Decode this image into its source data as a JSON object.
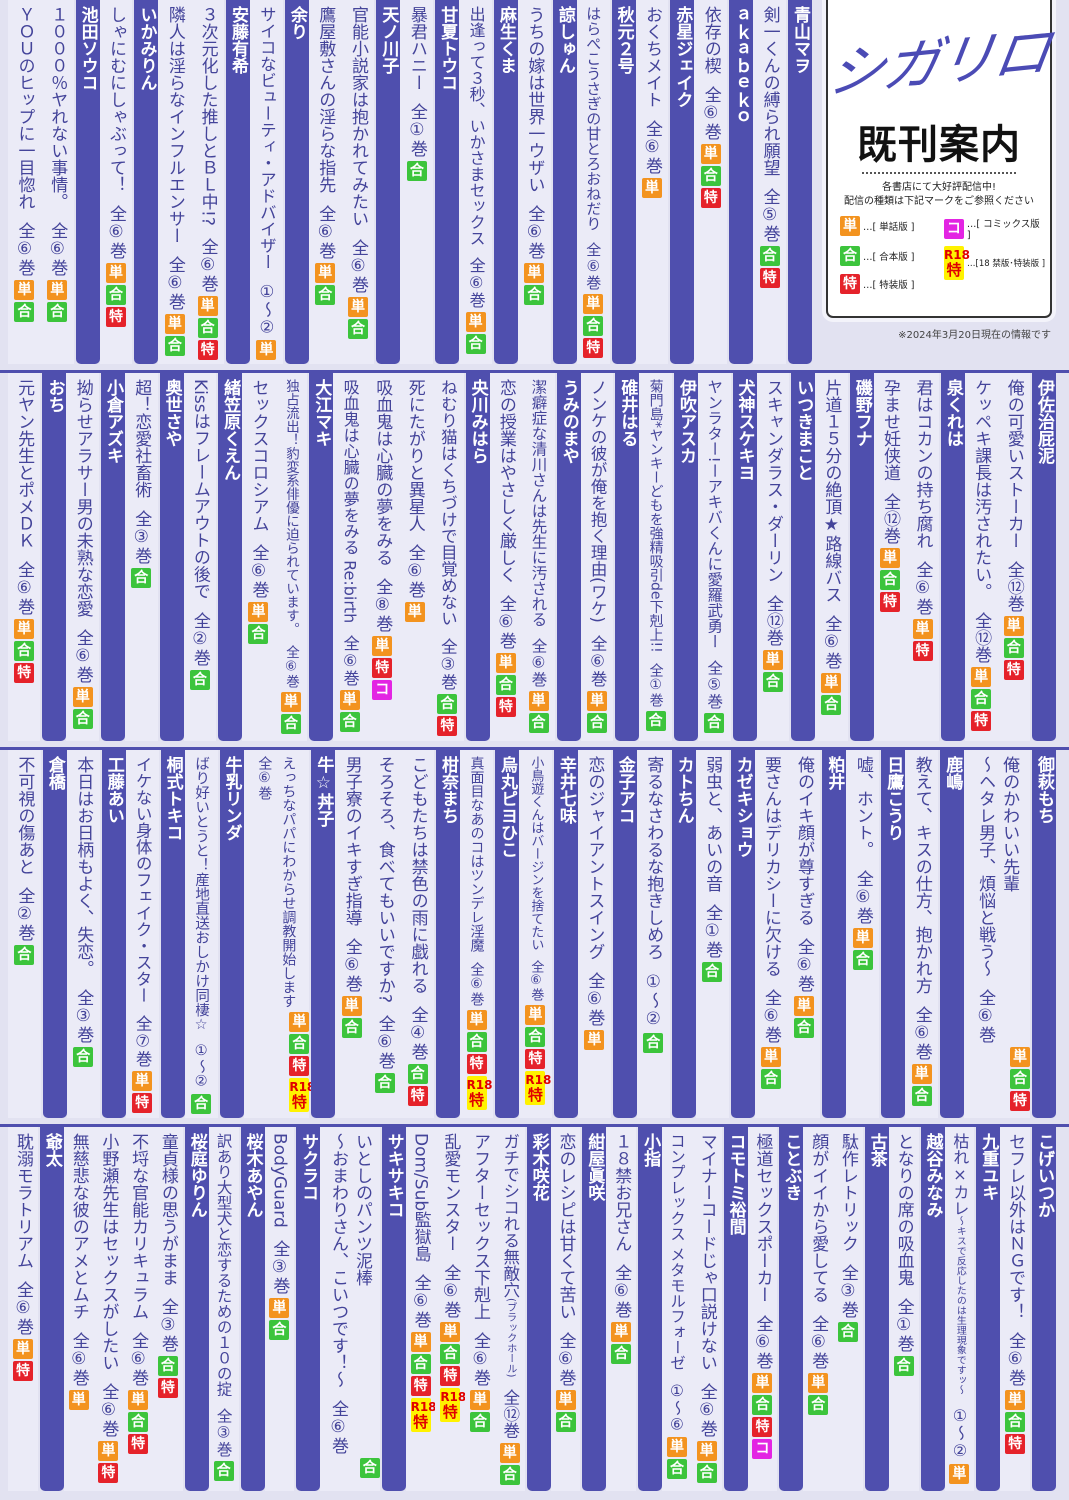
{
  "logo": {
    "brand": "シガリロ",
    "title": "既刊案内",
    "note_lines": [
      "各書店にて大好評配信中!",
      "配信の種類は下記マークをご参照ください"
    ],
    "legend": {
      "tan": "…[ 単話版 ]",
      "go": "…[ 合本版 ]",
      "toku": "…[ 特装版 ]",
      "ko": "…[ コミックス版 ]",
      "r18": "…[18 禁版･特装版 ]"
    },
    "date_note": "※2024年3月20日現在の情報です"
  },
  "badge_labels": {
    "tan": "単",
    "go": "合",
    "toku": "特",
    "ko": "コ",
    "r18": "R18",
    "r18_toku": "特"
  },
  "colors": {
    "bar": "#4f4fae",
    "text": "#44449a",
    "tan": "#f3931f",
    "go": "#3cc43c",
    "toku": "#e5222a",
    "ko": "#e324e3",
    "r18": "#fff200"
  },
  "bands": [
    [
      {
        "author": "青山マヲ",
        "titles": [
          {
            "lines": [
              "剣一くんの縛られ願望"
            ],
            "vol": "全⑤巻",
            "badges": [
              "go",
              "toku"
            ]
          }
        ]
      },
      {
        "author": "ａｋａｂｅｋｏ",
        "titles": [
          {
            "lines": [
              "依存の楔"
            ],
            "vol": "全⑥巻",
            "badges": [
              "tan",
              "go",
              "toku"
            ]
          }
        ]
      },
      {
        "author": "赤星ジェイク",
        "titles": [
          {
            "lines": [
              "おくちメイト"
            ],
            "vol": "全⑥巻",
            "badges": [
              "tan"
            ]
          }
        ]
      },
      {
        "author": "秋元２号",
        "titles": [
          {
            "lines": [
              "はらぺこうさぎの甘とろおねだり"
            ],
            "vol": "全⑥巻",
            "badges": [
              "tan",
              "go",
              "toku"
            ]
          }
        ]
      },
      {
        "author": "諒しゅん",
        "titles": [
          {
            "lines": [
              "うちの嫁は世界一ウザい"
            ],
            "vol": "全⑥巻",
            "badges": [
              "tan",
              "go"
            ]
          }
        ]
      },
      {
        "author": "麻生くま",
        "titles": [
          {
            "lines": [
              "出逢って３秒、いかさまセックス"
            ],
            "vol": "全⑥巻",
            "badges": [
              "tan",
              "go"
            ]
          }
        ]
      },
      {
        "author": "甘夏トウコ",
        "titles": [
          {
            "lines": [
              "暴君ハニー"
            ],
            "vol": "全①巻",
            "badges": [
              "go"
            ]
          }
        ]
      },
      {
        "author": "天ノ川子",
        "titles": [
          {
            "lines": [
              "官能小説家は抱かれてみたい"
            ],
            "vol": "全⑥巻",
            "badges": [
              "tan",
              "go"
            ]
          },
          {
            "lines": [
              "鷹屋敷さんの淫らな指先"
            ],
            "vol": "全⑥巻",
            "badges": [
              "tan",
              "go"
            ]
          }
        ]
      },
      {
        "author": "余り",
        "titles": [
          {
            "lines": [
              "サイコなビューティ・アドバイザー"
            ],
            "vol": "①～②",
            "badges": [
              "tan"
            ]
          }
        ]
      },
      {
        "author": "安藤有希",
        "titles": [
          {
            "lines": [
              "３次元化した推しとＢＬ中!?"
            ],
            "vol": "全⑥巻",
            "badges": [
              "tan",
              "go",
              "toku"
            ]
          },
          {
            "lines": [
              "隣人は淫らなインフルエンサー"
            ],
            "vol": "全⑥巻",
            "badges": [
              "tan",
              "go"
            ]
          }
        ]
      },
      {
        "author": "いかみりん",
        "titles": [
          {
            "lines": [
              "しゃにむにしゃぶって！"
            ],
            "vol": "全⑥巻",
            "badges": [
              "tan",
              "go",
              "toku"
            ]
          }
        ]
      },
      {
        "author": "池田ソウコ",
        "titles": [
          {
            "lines": [
              "１０００％ヤれない事情。"
            ],
            "vol": "全⑥巻",
            "badges": [
              "tan",
              "go"
            ]
          },
          {
            "lines": [
              "ＹＯＵのヒップに一目惚れ"
            ],
            "vol": "全⑥巻",
            "badges": [
              "tan",
              "go"
            ]
          }
        ]
      }
    ],
    [
      {
        "author": "伊佐治屁泥",
        "titles": [
          {
            "lines": [
              "俺の可愛いストーカー"
            ],
            "vol": "全⑫巻",
            "badges": [
              "tan",
              "go",
              "toku"
            ]
          },
          {
            "lines": [
              "ケッペキ課長は汚されたい。"
            ],
            "vol": "全⑫巻",
            "badges": [
              "tan",
              "go",
              "toku"
            ]
          }
        ]
      },
      {
        "author": "泉くれは",
        "titles": [
          {
            "lines": [
              "君はコカンの持ち腐れ"
            ],
            "vol": "全⑥巻",
            "badges": [
              "tan",
              "toku"
            ]
          },
          {
            "lines": [
              "孕ませ妊侠道"
            ],
            "vol": "全⑫巻",
            "badges": [
              "tan",
              "go",
              "toku"
            ]
          }
        ]
      },
      {
        "author": "磯野フナ",
        "titles": [
          {
            "lines": [
              "片道１５分の絶頂★路線バス"
            ],
            "vol": "全⑥巻",
            "badges": [
              "tan",
              "go"
            ]
          }
        ]
      },
      {
        "author": "いつきまこと",
        "titles": [
          {
            "lines": [
              "スキャンダラス・ダーリン"
            ],
            "vol": "全⑫巻",
            "badges": [
              "tan",
              "go"
            ]
          }
        ]
      },
      {
        "author": "犬神スケキヨ",
        "titles": [
          {
            "lines": [
              "ヤンラター!ーアキバくんに愛羅武勇ー"
            ],
            "vol": "全⑤巻",
            "badges": [
              "go"
            ]
          }
        ]
      },
      {
        "author": "伊吹アスカ",
        "titles": [
          {
            "lines": [
              "菊門島*ヤンキーどもを強精吸引de下剋上!!"
            ],
            "vol": "全①巻",
            "badges": [
              "go"
            ]
          }
        ]
      },
      {
        "author": "碓井はる",
        "titles": [
          {
            "lines": [
              "ノンケの彼が俺を抱く理由(ワケ)"
            ],
            "vol": "全⑥巻",
            "badges": [
              "tan",
              "go"
            ]
          }
        ]
      },
      {
        "author": "うみのまや",
        "titles": [
          {
            "lines": [
              "潔癖症な清川さんは先生に汚される"
            ],
            "vol": "全⑥巻",
            "badges": [
              "tan",
              "go"
            ]
          },
          {
            "lines": [
              "恋の授業はやさしく厳しく"
            ],
            "vol": "全⑥巻",
            "badges": [
              "tan",
              "go",
              "toku"
            ]
          }
        ]
      },
      {
        "author": "央川みはら",
        "titles": [
          {
            "lines": [
              "ねむり猫はくちづけで目覚めない"
            ],
            "vol": "全③巻",
            "badges": [
              "go",
              "toku"
            ]
          },
          {
            "lines": [
              "死にたがりと異星人"
            ],
            "vol": "全⑥巻",
            "badges": [
              "tan"
            ]
          },
          {
            "lines": [
              "吸血鬼は心臓の夢をみる"
            ],
            "vol": "全⑧巻",
            "badges": [
              "tan",
              "toku",
              "ko"
            ]
          },
          {
            "lines": [
              "吸血鬼は心臓の夢をみる Re:birth"
            ],
            "vol": "全⑥巻",
            "badges": [
              "tan",
              "go"
            ]
          }
        ]
      },
      {
        "author": "大江マキ",
        "titles": [
          {
            "lines": [
              "独占流出！豹変系俳優に迫られています。"
            ],
            "vol": "全⑥巻",
            "badges": [
              "tan",
              "go"
            ]
          },
          {
            "lines": [
              "セックスコロシアム"
            ],
            "vol": "全⑥巻",
            "badges": [
              "tan",
              "go"
            ]
          }
        ]
      },
      {
        "author": "緒笠原くえん",
        "titles": [
          {
            "lines": [
              "Kissはフレームアウトの後で"
            ],
            "vol": "全②巻",
            "badges": [
              "go"
            ]
          }
        ]
      },
      {
        "author": "奥世さや",
        "titles": [
          {
            "lines": [
              "超！恋愛社畜術"
            ],
            "vol": "全③巻",
            "badges": [
              "go"
            ]
          }
        ]
      },
      {
        "author": "小倉アズキ",
        "titles": [
          {
            "lines": [
              "拗らせアラサー男の未熟な恋愛"
            ],
            "vol": "全⑥巻",
            "badges": [
              "tan",
              "go"
            ]
          }
        ]
      },
      {
        "author": "おち",
        "titles": [
          {
            "lines": [
              "元ヤン先生とポメＤＫ"
            ],
            "vol": "全⑥巻",
            "badges": [
              "tan",
              "go",
              "toku"
            ]
          }
        ]
      }
    ],
    [
      {
        "author": "御萩もち",
        "titles": [
          {
            "lines": [
              "俺のかわいい先輩",
              "～ヘタレ男子、煩悩と戦う～"
            ],
            "vol": "全⑥巻",
            "badges": [
              "tan",
              "go",
              "toku"
            ]
          }
        ]
      },
      {
        "author": "鹿嶋",
        "titles": [
          {
            "lines": [
              "教えて、キスの仕方、抱かれ方"
            ],
            "vol": "全⑥巻",
            "badges": [
              "tan",
              "go"
            ]
          }
        ]
      },
      {
        "author": "日鷹こうり",
        "titles": [
          {
            "lines": [
              "嘘、ホント。"
            ],
            "vol": "全⑥巻",
            "badges": [
              "tan",
              "go"
            ]
          }
        ]
      },
      {
        "author": "粕井",
        "titles": [
          {
            "lines": [
              "俺のイキ顔が尊すぎる"
            ],
            "vol": "全⑥巻",
            "badges": [
              "tan",
              "go"
            ]
          },
          {
            "lines": [
              "要さんはデリカシーに欠ける"
            ],
            "vol": "全⑥巻",
            "badges": [
              "tan",
              "go"
            ]
          }
        ]
      },
      {
        "author": "カゼキショウ",
        "titles": [
          {
            "lines": [
              "弱虫と、あいの音"
            ],
            "vol": "全①巻",
            "badges": [
              "go"
            ]
          }
        ]
      },
      {
        "author": "カトちん",
        "titles": [
          {
            "lines": [
              "寄るなさわるな抱きしめろ"
            ],
            "vol": "①～②",
            "badges": [
              "go"
            ]
          }
        ]
      },
      {
        "author": "金子アコ",
        "titles": [
          {
            "lines": [
              "恋のジャイアントスイング"
            ],
            "vol": "全⑥巻",
            "badges": [
              "tan"
            ]
          }
        ]
      },
      {
        "author": "辛井七味",
        "titles": [
          {
            "lines": [
              "小鳥遊くんはバージンを捨てたい"
            ],
            "vol": "全⑥巻",
            "badges": [
              "tan",
              "go",
              "toku",
              "r18"
            ]
          }
        ]
      },
      {
        "author": "烏丸ピヨひこ",
        "titles": [
          {
            "lines": [
              "真面目なあのコはツンデレ淫魔"
            ],
            "vol": "全⑥巻",
            "badges": [
              "tan",
              "go",
              "toku",
              "r18"
            ]
          }
        ]
      },
      {
        "author": "柑奈まち",
        "titles": [
          {
            "lines": [
              "こどもたちは禁色の雨に戯れる"
            ],
            "vol": "全④巻",
            "badges": [
              "go",
              "toku"
            ]
          },
          {
            "lines": [
              "そろそろ、食べてもいいですか?"
            ],
            "vol": "全⑥巻",
            "badges": [
              "go"
            ]
          },
          {
            "lines": [
              "男子寮のイキすぎ指導"
            ],
            "vol": "全⑥巻",
            "badges": [
              "tan",
              "go"
            ]
          }
        ]
      },
      {
        "author": "牛☆丼子",
        "titles": [
          {
            "lines": [
              "えっちなパパにわからせ調教開始します",
              "全⑥巻"
            ],
            "vol": "",
            "badges": [
              "tan",
              "go",
              "toku",
              "r18"
            ]
          }
        ]
      },
      {
        "author": "牛乳リンダ",
        "titles": [
          {
            "lines": [
              "ばり好いとうと！産地直送おしかけ同棲☆"
            ],
            "vol": "①～②",
            "badges": [
              "go"
            ]
          }
        ]
      },
      {
        "author": "桐式トキコ",
        "titles": [
          {
            "lines": [
              "イケない身体のフェイク・スター"
            ],
            "vol": "全⑦巻",
            "badges": [
              "tan",
              "toku"
            ]
          }
        ]
      },
      {
        "author": "工藤あい",
        "titles": [
          {
            "lines": [
              "本日はお日柄もよく、失恋。"
            ],
            "vol": "全③巻",
            "badges": [
              "go"
            ]
          }
        ]
      },
      {
        "author": "倉橋",
        "titles": [
          {
            "lines": [
              "不可視の傷あと"
            ],
            "vol": "全②巻",
            "badges": [
              "go"
            ]
          }
        ]
      }
    ],
    [
      {
        "author": "こげいつか",
        "titles": [
          {
            "lines": [
              "セフレ以外はＮＧです！"
            ],
            "vol": "全⑥巻",
            "badges": [
              "tan",
              "go",
              "toku"
            ]
          }
        ]
      },
      {
        "author": "九重ユキ",
        "titles": [
          {
            "lines": [
              "枯れ×カレ"
            ],
            "sub": "～キスで反応したのは生理現象ですッ～",
            "vol": "①～②",
            "badges": [
              "tan"
            ]
          }
        ]
      },
      {
        "author": "越谷みなみ",
        "titles": [
          {
            "lines": [
              "となりの席の吸血鬼"
            ],
            "vol": "全①巻",
            "badges": [
              "go"
            ]
          }
        ]
      },
      {
        "author": "古茶",
        "titles": [
          {
            "lines": [
              "駄作レトリック"
            ],
            "vol": "全③巻",
            "badges": [
              "go"
            ]
          },
          {
            "lines": [
              "顔がイイから愛してる"
            ],
            "vol": "全⑥巻",
            "badges": [
              "tan",
              "go"
            ]
          }
        ]
      },
      {
        "author": "ことぶき",
        "titles": [
          {
            "lines": [
              "極道セックスポーカー"
            ],
            "vol": "全⑥巻",
            "badges": [
              "tan",
              "go",
              "toku",
              "ko"
            ]
          }
        ]
      },
      {
        "author": "コモトミ裕間",
        "titles": [
          {
            "lines": [
              "マイナーコードじゃ口説けない"
            ],
            "vol": "全⑥巻",
            "badges": [
              "tan",
              "go"
            ]
          },
          {
            "lines": [
              "コンプレックス メタモルフォーゼ"
            ],
            "vol": "①～⑥",
            "badges": [
              "tan",
              "go"
            ]
          }
        ]
      },
      {
        "author": "小指",
        "titles": [
          {
            "lines": [
              "１８禁お兄さん"
            ],
            "vol": "全⑥巻",
            "badges": [
              "tan",
              "go"
            ]
          }
        ]
      },
      {
        "author": "紺屋眞咲",
        "titles": [
          {
            "lines": [
              "恋のレシピは甘くて苦い"
            ],
            "vol": "全⑥巻",
            "badges": [
              "tan",
              "go"
            ]
          }
        ]
      },
      {
        "author": "彩木咲花",
        "titles": [
          {
            "lines": [
              "ガチでシコれる無敵穴"
            ],
            "sub": "(ブラックホール)",
            "vol": "全⑫巻",
            "badges": [
              "tan",
              "go"
            ]
          },
          {
            "lines": [
              "アフターセックス下剋上"
            ],
            "vol": "全⑥巻",
            "badges": [
              "tan",
              "go"
            ]
          },
          {
            "lines": [
              "乱愛モンスター"
            ],
            "vol": "全⑥巻",
            "badges": [
              "tan",
              "go",
              "toku",
              "r18"
            ]
          },
          {
            "lines": [
              "Dom/Sub監獄島"
            ],
            "vol": "全⑥巻",
            "badges": [
              "tan",
              "go",
              "toku",
              "r18"
            ]
          }
        ]
      },
      {
        "author": "サキサキコ",
        "titles": [
          {
            "lines": [
              "いとしのパンツ泥棒",
              "～おまわりさん、こいつです！～"
            ],
            "vol": "全⑥巻",
            "badges": [
              "go"
            ]
          }
        ]
      },
      {
        "author": "サクラコ",
        "titles": [
          {
            "lines": [
              "BodyGuard"
            ],
            "vol": "全③巻",
            "badges": [
              "tan",
              "go"
            ]
          }
        ]
      },
      {
        "author": "桜木あやん",
        "titles": [
          {
            "lines": [
              "訳あり大型犬と恋するための１０の掟"
            ],
            "vol": "全③巻",
            "badges": [
              "go"
            ]
          }
        ]
      },
      {
        "author": "桜庭ゆりん",
        "titles": [
          {
            "lines": [
              "童貞様の思うがまま"
            ],
            "vol": "全③巻",
            "badges": [
              "go",
              "toku"
            ]
          },
          {
            "lines": [
              "不埒な官能カリキュラム"
            ],
            "vol": "全⑥巻",
            "badges": [
              "tan",
              "go",
              "toku"
            ]
          },
          {
            "lines": [
              "小野瀬先生はセックスがしたい"
            ],
            "vol": "全⑥巻",
            "badges": [
              "tan",
              "toku"
            ]
          },
          {
            "lines": [
              "無慈悲な彼のアメとムチ"
            ],
            "vol": "全⑥巻",
            "badges": [
              "tan"
            ]
          }
        ]
      },
      {
        "author": "爺太",
        "titles": [
          {
            "lines": [
              "耽溺モラトリアム"
            ],
            "vol": "全⑥巻",
            "badges": [
              "tan",
              "toku"
            ]
          }
        ]
      }
    ]
  ]
}
